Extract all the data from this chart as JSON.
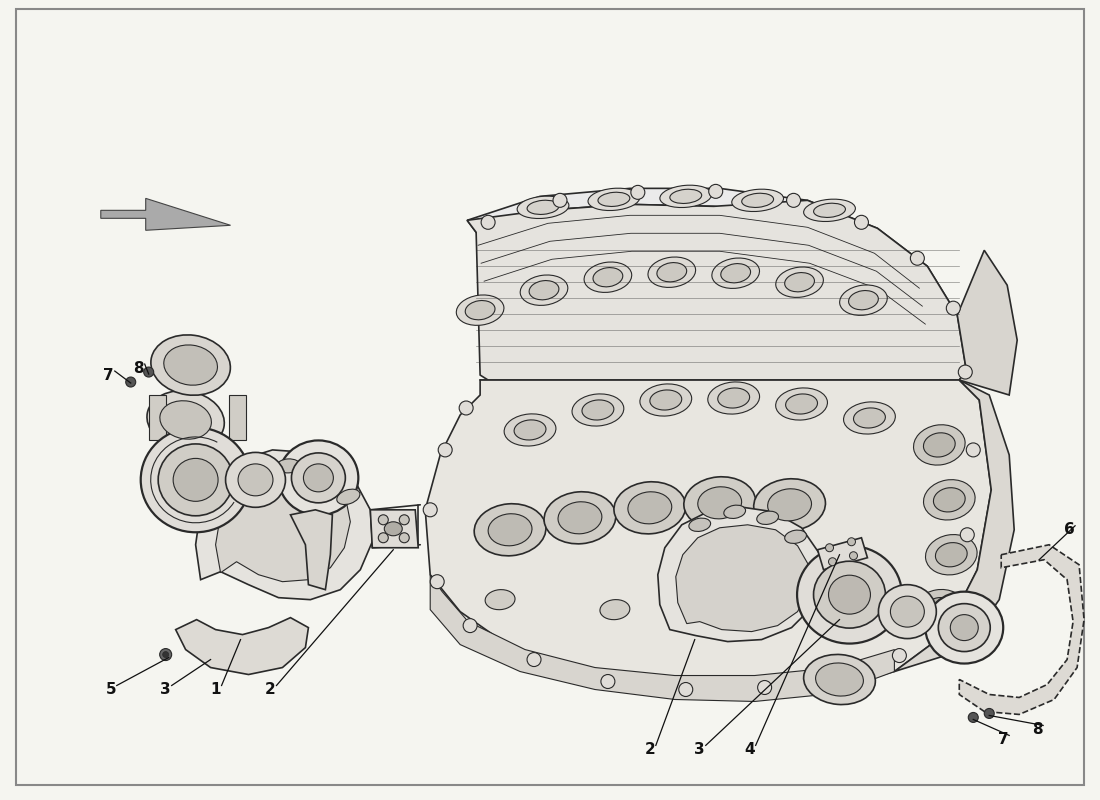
{
  "background_color": "#f5f5f0",
  "line_color": "#2a2a2a",
  "text_color": "#111111",
  "fig_width": 11.0,
  "fig_height": 8.0,
  "dpi": 100,
  "border_color": "#888888",
  "engine_fill": "#f0eeea",
  "part_labels_upper_left": [
    "5",
    "3",
    "1",
    "2"
  ],
  "part_labels_lower_left": [
    "7",
    "8"
  ],
  "part_labels_lower_right": [
    "2",
    "3",
    "4"
  ],
  "part_labels_right": [
    "6",
    "7",
    "8"
  ]
}
